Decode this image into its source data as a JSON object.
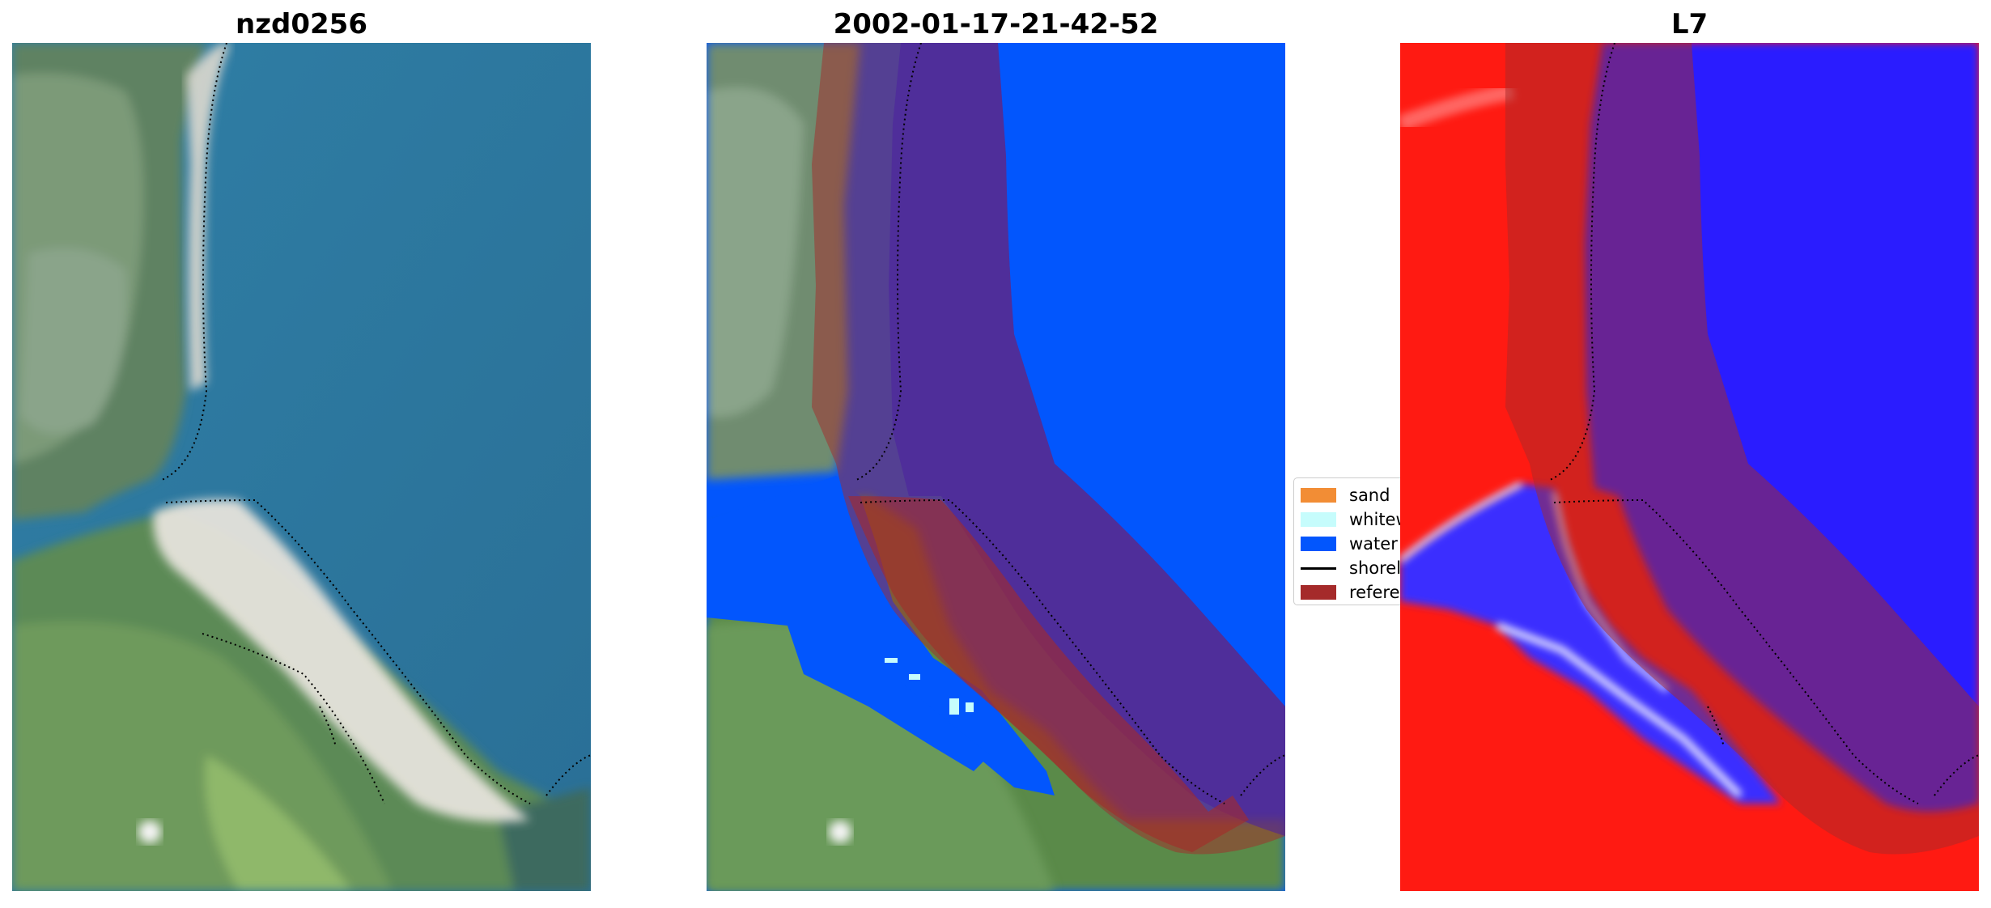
{
  "panels": [
    {
      "title": "nzd0256"
    },
    {
      "title": "2002-01-17-21-42-52"
    },
    {
      "title": "L7"
    }
  ],
  "legend": {
    "items": [
      {
        "label": "sand",
        "color": "#f28d35"
      },
      {
        "label": "whitewater",
        "color": "#c6fcfc"
      },
      {
        "label": "water",
        "color": "#0256fd"
      },
      {
        "label": "shoreline",
        "color": "#000000"
      },
      {
        "label": "reference",
        "color": "#a52a2a"
      }
    ]
  },
  "colors": {
    "water_rgb": "#2e6f96",
    "land_green": "#5c8a57",
    "sand_white": "#e6e3dc",
    "mndwi_water": "#2a1fff",
    "mndwi_land": "#ff1a12",
    "buffer_overlay": "#a52a2a"
  }
}
